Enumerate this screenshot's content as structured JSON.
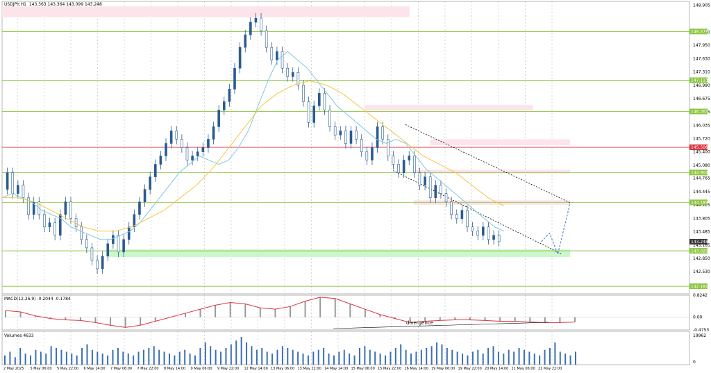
{
  "chart_data": [
    {
      "type": "candlestick",
      "title": "USDJPY,H1",
      "ohlc_label": "143.363 143.364 143.099 143.248",
      "y_ticks": [
        "148.905",
        "148.260",
        "147.950",
        "147.630",
        "147.310",
        "146.990",
        "146.675",
        "146.355",
        "146.035",
        "145.720",
        "145.400",
        "145.080",
        "144.765",
        "144.445",
        "144.125",
        "143.805",
        "143.485",
        "143.165",
        "142.850",
        "142.530"
      ],
      "level_tags": [
        {
          "label": "148.279",
          "value": 148.279,
          "color": "#8cc63f"
        },
        {
          "label": "147.113",
          "value": 147.113,
          "color": "#8cc63f"
        },
        {
          "label": "146.365",
          "value": 146.365,
          "color": "#8cc63f"
        },
        {
          "label": "145.508",
          "value": 145.508,
          "color": "#d9363e"
        },
        {
          "label": "144.904",
          "value": 144.904,
          "color": "#8cc63f"
        },
        {
          "label": "144.189",
          "value": 144.189,
          "color": "#8cc63f"
        },
        {
          "label": "143.248",
          "value": 143.248,
          "color": "#333333"
        },
        {
          "label": "143.029",
          "value": 143.029,
          "color": "#8cc63f"
        },
        {
          "label": "142.181",
          "value": 142.181,
          "color": "#8cc63f"
        }
      ],
      "zones": [
        {
          "x0": 0,
          "x1": 99,
          "y0": 148.88,
          "y1": 148.62,
          "color": "#fde4ea"
        },
        {
          "x0": 88,
          "x1": 129,
          "y0": 146.52,
          "y1": 146.38,
          "color": "#fde4ea"
        },
        {
          "x0": 104,
          "x1": 138,
          "y0": 145.7,
          "y1": 145.56,
          "color": "#fde4ea"
        },
        {
          "x0": 100,
          "x1": 138,
          "y0": 144.97,
          "y1": 144.88,
          "color": "#fde4ea"
        },
        {
          "x0": 100,
          "x1": 138,
          "y0": 144.24,
          "y1": 144.13,
          "color": "#fde4ea"
        },
        {
          "x0": 26,
          "x1": 138,
          "y0": 143.06,
          "y1": 142.88,
          "color": "#ccf7cc"
        }
      ],
      "x_labels": [
        "2 May 2025",
        "5 May 06:00",
        "5 May 22:00",
        "6 May 14:00",
        "7 May 06:00",
        "7 May 22:00",
        "8 May 14:00",
        "9 May 06:00",
        "9 May 22:00",
        "12 May 14:00",
        "13 May 06:00",
        "13 May 22:00",
        "14 May 14:00",
        "15 May 06:00",
        "15 May 22:00",
        "16 May 14:00",
        "19 May 06:00",
        "19 May 22:00",
        "20 May 14:00",
        "21 May 06:00",
        "21 May 22:00"
      ],
      "closes": [
        144.5,
        144.9,
        144.4,
        144.6,
        144.3,
        143.9,
        144.2,
        143.9,
        143.6,
        143.7,
        143.4,
        143.9,
        144.2,
        143.8,
        143.6,
        143.3,
        143.1,
        142.8,
        142.6,
        142.9,
        143.2,
        143.4,
        143.0,
        143.3,
        143.6,
        143.9,
        144.2,
        144.5,
        144.8,
        145.1,
        145.3,
        145.6,
        145.9,
        145.7,
        145.5,
        145.2,
        145.3,
        145.4,
        145.5,
        145.7,
        146.0,
        146.4,
        146.6,
        146.9,
        147.4,
        147.9,
        148.2,
        148.5,
        148.6,
        148.3,
        147.9,
        147.6,
        147.8,
        147.4,
        147.2,
        147.3,
        147.0,
        146.6,
        146.1,
        146.5,
        146.8,
        146.4,
        146.0,
        145.8,
        145.9,
        145.6,
        145.9,
        145.7,
        145.4,
        145.2,
        145.5,
        146.0,
        145.7,
        145.3,
        145.1,
        144.9,
        145.2,
        145.3,
        144.9,
        144.6,
        144.8,
        144.3,
        144.6,
        144.4,
        144.2,
        143.9,
        143.8,
        144.0,
        143.6,
        143.5,
        143.4,
        143.6,
        143.3,
        143.4,
        143.248
      ],
      "ma_fast": [
        144.3,
        144.4,
        144.3,
        144.2,
        144.0,
        143.9,
        143.8,
        143.6,
        143.5,
        143.4,
        143.3,
        143.3,
        143.4,
        143.5,
        143.7,
        144.0,
        144.3,
        144.6,
        144.9,
        145.1,
        145.3,
        145.2,
        145.1,
        145.2,
        145.5,
        145.9,
        146.5,
        147.1,
        147.6,
        147.8,
        147.6,
        147.4,
        147.1,
        146.8,
        146.5,
        146.3,
        146.1,
        145.9,
        145.7,
        145.6,
        145.7,
        145.6,
        145.3,
        145.0,
        144.8,
        144.6,
        144.4,
        144.2,
        144.0,
        143.8,
        143.6,
        143.5
      ],
      "ma_slow": [
        144.3,
        144.3,
        144.2,
        144.0,
        143.8,
        143.6,
        143.5,
        143.5,
        143.6,
        143.8,
        144.0,
        144.3,
        144.6,
        145.0,
        145.5,
        146.0,
        146.5,
        146.8,
        147.0,
        147.1,
        147.0,
        146.8,
        146.5,
        146.2,
        145.9,
        145.6,
        145.3,
        145.1,
        144.9,
        144.6,
        144.3,
        144.1
      ],
      "channel": {
        "upper": [
          [
            98,
            146.05
          ],
          [
            138,
            144.18
          ]
        ],
        "lower": [
          [
            95,
            144.95
          ],
          [
            136,
            142.95
          ]
        ]
      },
      "forecast": [
        [
          131,
          143.25
        ],
        [
          133,
          143.45
        ],
        [
          135,
          142.95
        ],
        [
          138,
          144.18
        ]
      ]
    },
    {
      "type": "macd",
      "label": "MACD(12,26,9) -0.2044 -0.1784",
      "y_ticks": [
        "0.8242",
        "0.00",
        "-0.4753"
      ],
      "signal": [
        0.25,
        0.2,
        0.05,
        -0.05,
        -0.1,
        -0.12,
        -0.2,
        -0.3,
        -0.38,
        -0.3,
        -0.15,
        0.0,
        0.15,
        0.3,
        0.45,
        0.55,
        0.5,
        0.35,
        0.3,
        0.4,
        0.6,
        0.75,
        0.7,
        0.5,
        0.3,
        0.1,
        -0.05,
        -0.2,
        -0.15,
        -0.12,
        -0.1,
        -0.1,
        -0.12,
        -0.15,
        -0.15,
        -0.18,
        -0.2,
        -0.2,
        -0.18
      ],
      "annotation": "divergence"
    },
    {
      "type": "bar",
      "label": "Volumes 4633",
      "y_ticks": [
        "19962",
        "0"
      ],
      "values": [
        5,
        7,
        4,
        9,
        6,
        5,
        8,
        7,
        6,
        10,
        9,
        8,
        7,
        6,
        5,
        9,
        11,
        8,
        7,
        6,
        5,
        8,
        9,
        7,
        6,
        5,
        7,
        8,
        9,
        10,
        8,
        7,
        6,
        5,
        7,
        8,
        6,
        5,
        9,
        12,
        10,
        8,
        7,
        9,
        11,
        13,
        15,
        12,
        10,
        8,
        9,
        7,
        6,
        8,
        10,
        9,
        8,
        7,
        6,
        5,
        7,
        8,
        9,
        6,
        5,
        7,
        8,
        6,
        5,
        9,
        10,
        8,
        7,
        6,
        5,
        7,
        9,
        11,
        8,
        6,
        7,
        8,
        9,
        10,
        12,
        11,
        9,
        8,
        7,
        6,
        5,
        7,
        8,
        6,
        9,
        10,
        7,
        6,
        8,
        7,
        9,
        8,
        7,
        6,
        5,
        8,
        9,
        12,
        7,
        6,
        5,
        7
      ]
    }
  ]
}
